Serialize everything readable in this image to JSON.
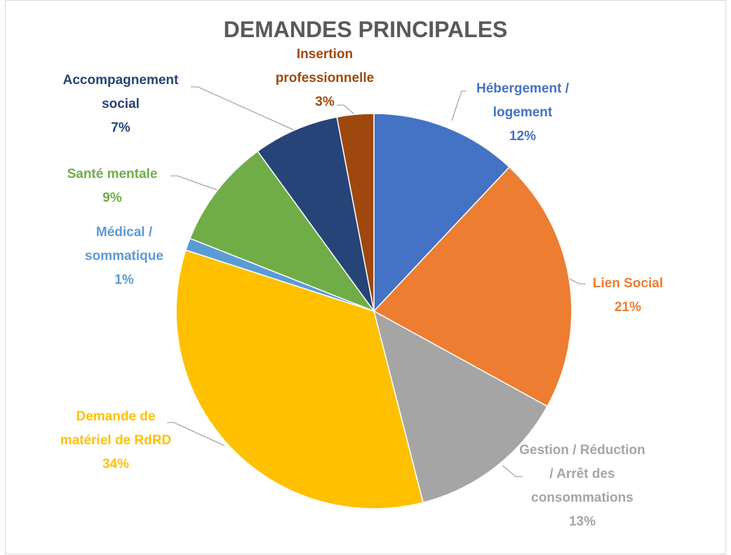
{
  "chart_data": {
    "type": "pie",
    "title": "DEMANDES PRINCIPALES",
    "categories": [
      "Hébergement / logement",
      "Lien Social",
      "Gestion / Réduction / Arrêt des consommations",
      "Demande de matériel de RdRD",
      "Médical / sommatique",
      "Santé mentale",
      "Accompagnement social",
      "Insertion professionnelle"
    ],
    "values": [
      12,
      21,
      13,
      34,
      1,
      9,
      7,
      3
    ],
    "value_labels": [
      "12%",
      "21%",
      "13%",
      "34%",
      "1%",
      "9%",
      "7%",
      "3%"
    ],
    "colors": [
      "#4472c4",
      "#ed7d31",
      "#a5a5a5",
      "#ffc000",
      "#5b9bd5",
      "#70ad47",
      "#264478",
      "#9e480e"
    ]
  }
}
